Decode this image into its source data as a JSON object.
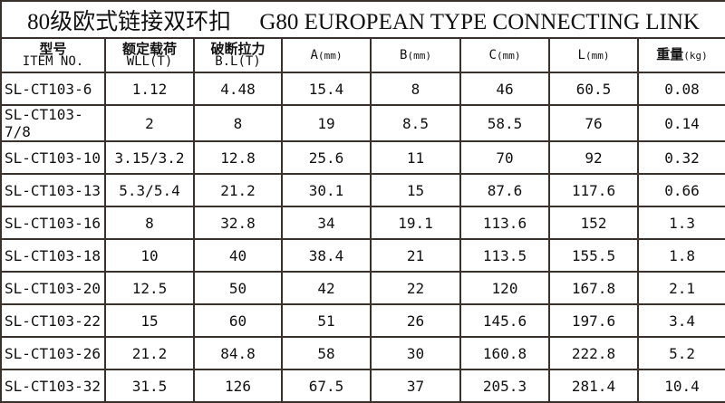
{
  "title": {
    "cn": "80级欧式链接双环扣",
    "en": "G80 EUROPEAN TYPE CONNECTING LINK"
  },
  "headers": [
    {
      "cn": "型号",
      "en": "ITEM NO."
    },
    {
      "cn": "额定载荷",
      "en": "WLL(T)"
    },
    {
      "cn": "破断拉力",
      "en": "B.L(T)"
    },
    {
      "cn": "",
      "en": "A",
      "unit": "(mm)"
    },
    {
      "cn": "",
      "en": "B",
      "unit": "(mm)"
    },
    {
      "cn": "",
      "en": "C",
      "unit": "(mm)"
    },
    {
      "cn": "",
      "en": "L",
      "unit": "(mm)"
    },
    {
      "cn": "重量",
      "en": "",
      "unit": "(kg)"
    }
  ],
  "rows": [
    [
      "SL-CT103-6",
      "1.12",
      "4.48",
      "15.4",
      "8",
      "46",
      "60.5",
      "0.08"
    ],
    [
      "SL-CT103-7/8",
      "2",
      "8",
      "19",
      "8.5",
      "58.5",
      "76",
      "0.14"
    ],
    [
      "SL-CT103-10",
      "3.15/3.2",
      "12.8",
      "25.6",
      "11",
      "70",
      "92",
      "0.32"
    ],
    [
      "SL-CT103-13",
      "5.3/5.4",
      "21.2",
      "30.1",
      "15",
      "87.6",
      "117.6",
      "0.66"
    ],
    [
      "SL-CT103-16",
      "8",
      "32.8",
      "34",
      "19.1",
      "113.6",
      "152",
      "1.3"
    ],
    [
      "SL-CT103-18",
      "10",
      "40",
      "38.4",
      "21",
      "113.5",
      "155.5",
      "1.8"
    ],
    [
      "SL-CT103-20",
      "12.5",
      "50",
      "42",
      "22",
      "120",
      "167.8",
      "2.1"
    ],
    [
      "SL-CT103-22",
      "15",
      "60",
      "51",
      "26",
      "145.6",
      "197.6",
      "3.4"
    ],
    [
      "SL-CT103-26",
      "21.2",
      "84.8",
      "58",
      "30",
      "160.8",
      "222.8",
      "5.2"
    ],
    [
      "SL-CT103-32",
      "31.5",
      "126",
      "67.5",
      "37",
      "205.3",
      "281.4",
      "10.4"
    ]
  ]
}
